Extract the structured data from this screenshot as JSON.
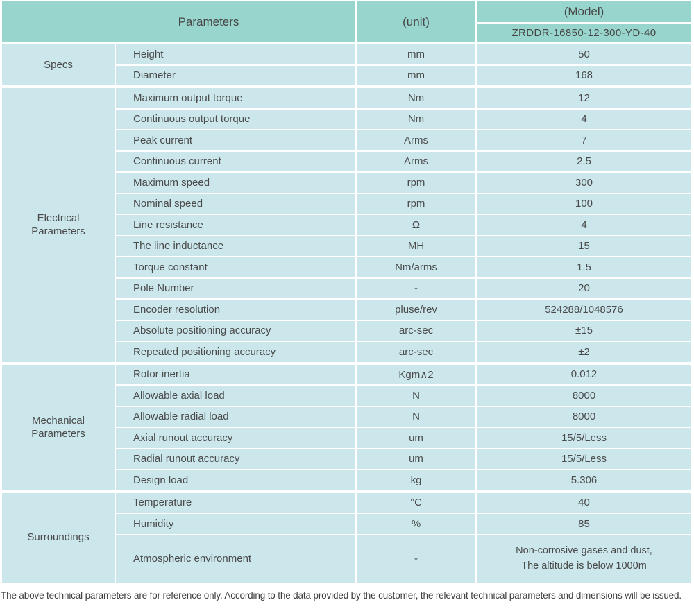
{
  "colors": {
    "header_bg": "#98d5cd",
    "row_bg": "#cbe7ec",
    "text": "#4a4a4a"
  },
  "header": {
    "parameters_label": "Parameters",
    "unit_label": "(unit)",
    "model_label": "(Model)",
    "model_value": "ZRDDR-16850-12-300-YD-40"
  },
  "sections": [
    {
      "label": "Specs",
      "rows": [
        {
          "param": "Height",
          "unit": "mm",
          "value": "50"
        },
        {
          "param": "Diameter",
          "unit": "mm",
          "value": "168"
        }
      ]
    },
    {
      "label": "Electrical\nParameters",
      "rows": [
        {
          "param": "Maximum output torque",
          "unit": "Nm",
          "value": "12"
        },
        {
          "param": "Continuous output torque",
          "unit": "Nm",
          "value": "4"
        },
        {
          "param": "Peak current",
          "unit": "Arms",
          "value": "7"
        },
        {
          "param": "Continuous current",
          "unit": "Arms",
          "value": "2.5"
        },
        {
          "param": "Maximum speed",
          "unit": "rpm",
          "value": "300"
        },
        {
          "param": "Nominal speed",
          "unit": "rpm",
          "value": "100"
        },
        {
          "param": "Line resistance",
          "unit": "Ω",
          "value": "4"
        },
        {
          "param": "The line inductance",
          "unit": "MH",
          "value": "15"
        },
        {
          "param": "Torque constant",
          "unit": "Nm/arms",
          "value": "1.5"
        },
        {
          "param": "Pole Number",
          "unit": "-",
          "value": "20"
        },
        {
          "param": "Encoder resolution",
          "unit": "pluse/rev",
          "value": "524288/1048576"
        },
        {
          "param": "Absolute positioning accuracy",
          "unit": "arc-sec",
          "value": "±15"
        },
        {
          "param": "Repeated positioning accuracy",
          "unit": "arc-sec",
          "value": "±2"
        }
      ]
    },
    {
      "label": "Mechanical\nParameters",
      "rows": [
        {
          "param": "Rotor inertia",
          "unit": "Kgm∧2",
          "value": "0.012"
        },
        {
          "param": "Allowable axial load",
          "unit": "N",
          "value": "8000"
        },
        {
          "param": "Allowable radial load",
          "unit": "N",
          "value": "8000"
        },
        {
          "param": "Axial runout accuracy",
          "unit": "um",
          "value": "15/5/Less"
        },
        {
          "param": "Radial runout accuracy",
          "unit": "um",
          "value": "15/5/Less"
        },
        {
          "param": "Design load",
          "unit": "kg",
          "value": "5.306"
        }
      ]
    },
    {
      "label": "Surroundings",
      "rows": [
        {
          "param": "Temperature",
          "unit": "°C",
          "value": "40"
        },
        {
          "param": "Humidity",
          "unit": "%",
          "value": "85"
        },
        {
          "param": "Atmospheric environment",
          "unit": "-",
          "value": "Non-corrosive gases and dust,",
          "value_line2": "The altitude is below 1000m"
        }
      ]
    }
  ],
  "footer": {
    "note": "The above technical parameters are for reference only. According to the data provided by the customer, the relevant technical parameters and dimensions will be issued."
  }
}
